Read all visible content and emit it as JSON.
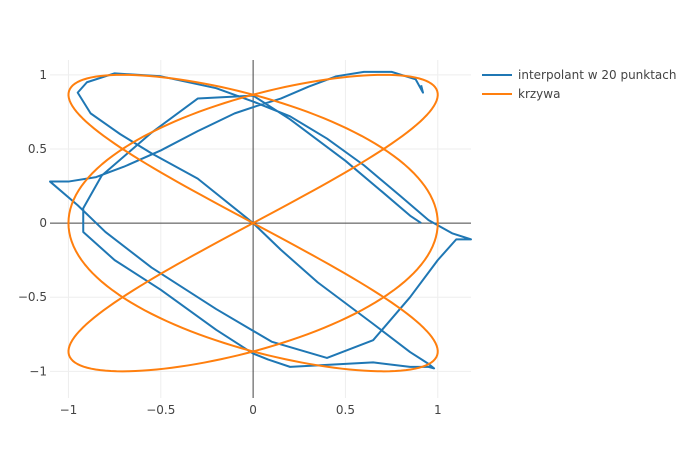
{
  "chart_data": {
    "type": "line",
    "title": "",
    "xlabel": "",
    "ylabel": "",
    "xlim": [
      -1.1,
      1.18
    ],
    "ylim": [
      -1.18,
      1.1
    ],
    "grid": true,
    "zero_lines": true,
    "legend_position": "top-right",
    "x_ticks": [
      -1,
      -0.5,
      0,
      0.5,
      1
    ],
    "y_ticks": [
      -1,
      -0.5,
      0,
      0.5,
      1
    ],
    "x_tick_labels": [
      "−1",
      "−0.5",
      "0",
      "0.5",
      "1"
    ],
    "y_tick_labels": [
      "−1",
      "−0.5",
      "0",
      "0.5",
      "1"
    ],
    "series": [
      {
        "name": "interpolant w 20 punktach",
        "color": "#1f77b4",
        "x": [
          0.91,
          0.92,
          0.88,
          0.75,
          0.6,
          0.45,
          0.3,
          0.15,
          0.02,
          -0.1,
          -0.3,
          -0.5,
          -0.7,
          -0.85,
          -1.0,
          -1.1,
          -0.95,
          -0.8,
          -0.55,
          -0.2,
          0.1,
          0.4,
          0.65,
          0.85,
          1.0,
          1.1,
          1.18,
          1.08,
          0.95,
          0.8,
          0.6,
          0.4,
          0.2,
          0.0,
          -0.2,
          -0.5,
          -0.75,
          -0.9,
          -0.95,
          -0.88,
          -0.72,
          -0.55,
          -0.3,
          0.0,
          0.15,
          0.35,
          0.65,
          0.85,
          0.95,
          0.98,
          0.95,
          0.85,
          0.65,
          0.5,
          0.35,
          0.2,
          0.08,
          0.0,
          -0.2,
          -0.5,
          -0.75,
          -0.92,
          -0.92,
          -0.82,
          -0.55,
          -0.3,
          0.0,
          0.2,
          0.5,
          0.7,
          0.85,
          0.91
        ],
        "y": [
          0.93,
          0.88,
          0.97,
          1.02,
          1.02,
          0.99,
          0.92,
          0.84,
          0.79,
          0.74,
          0.62,
          0.49,
          0.38,
          0.31,
          0.28,
          0.28,
          0.12,
          -0.06,
          -0.3,
          -0.58,
          -0.8,
          -0.91,
          -0.79,
          -0.5,
          -0.25,
          -0.11,
          -0.11,
          -0.07,
          0.02,
          0.18,
          0.39,
          0.57,
          0.72,
          0.82,
          0.91,
          0.99,
          1.01,
          0.95,
          0.88,
          0.74,
          0.6,
          0.47,
          0.3,
          0.0,
          -0.18,
          -0.4,
          -0.68,
          -0.87,
          -0.95,
          -0.98,
          -0.97,
          -0.97,
          -0.94,
          -0.95,
          -0.96,
          -0.97,
          -0.92,
          -0.88,
          -0.72,
          -0.45,
          -0.25,
          -0.06,
          0.1,
          0.32,
          0.61,
          0.84,
          0.86,
          0.7,
          0.42,
          0.21,
          0.05,
          0.0
        ]
      },
      {
        "name": "krzywa",
        "color": "#ff7f0e",
        "function": "lissajous",
        "x_frequency": 3,
        "y_frequency": 2,
        "samples": 400
      }
    ]
  },
  "legend": {
    "items": [
      {
        "label": "interpolant w 20 punktach",
        "color": "#1f77b4"
      },
      {
        "label": "krzywa",
        "color": "#ff7f0e"
      }
    ]
  }
}
